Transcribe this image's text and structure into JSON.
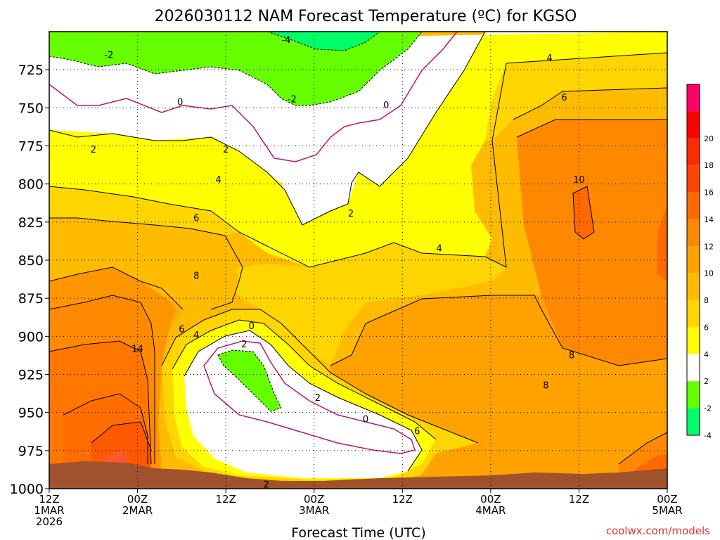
{
  "chart_data": {
    "type": "heatmap",
    "title": "2026030112 NAM Forecast Temperature (ºC) for KGSO",
    "xlabel": "Forecast Time (UTC)",
    "credit": "coolwx.com/models",
    "x_range_hours": [
      0,
      84
    ],
    "y_range_hpa": [
      1000,
      700
    ],
    "y_ticks": [
      725,
      750,
      775,
      800,
      825,
      850,
      875,
      900,
      925,
      950,
      975,
      1000
    ],
    "x_ticks": [
      {
        "hour": 0,
        "line1": "12Z",
        "line2": "1MAR",
        "line3": "2026"
      },
      {
        "hour": 12,
        "line1": "00Z",
        "line2": "2MAR",
        "line3": ""
      },
      {
        "hour": 24,
        "line1": "12Z",
        "line2": "",
        "line3": ""
      },
      {
        "hour": 36,
        "line1": "00Z",
        "line2": "3MAR",
        "line3": ""
      },
      {
        "hour": 48,
        "line1": "12Z",
        "line2": "",
        "line3": ""
      },
      {
        "hour": 60,
        "line1": "00Z",
        "line2": "4MAR",
        "line3": ""
      },
      {
        "hour": 72,
        "line1": "12Z",
        "line2": "",
        "line3": ""
      },
      {
        "hour": 84,
        "line1": "00Z",
        "line2": "5MAR",
        "line3": ""
      }
    ],
    "colorbar": [
      {
        "from": 20,
        "to": 22,
        "color": "#ff0066",
        "label": ""
      },
      {
        "from": 18,
        "to": 20,
        "color": "#ff0000",
        "label": "20"
      },
      {
        "from": 16,
        "to": 18,
        "color": "#ff2a00",
        "label": "18"
      },
      {
        "from": 14,
        "to": 16,
        "color": "#ff4400",
        "label": "16"
      },
      {
        "from": 12,
        "to": 14,
        "color": "#ff6a00",
        "label": "14"
      },
      {
        "from": 10,
        "to": 12,
        "color": "#ff8800",
        "label": "12"
      },
      {
        "from": 8,
        "to": 10,
        "color": "#ffa200",
        "label": "10"
      },
      {
        "from": 6,
        "to": 8,
        "color": "#ffbb00",
        "label": "8"
      },
      {
        "from": 4,
        "to": 6,
        "color": "#ffd500",
        "label": "6"
      },
      {
        "from": 2,
        "to": 4,
        "color": "#ffff00",
        "label": "4"
      },
      {
        "from": -2,
        "to": 2,
        "color": "#ffffff",
        "label": "2"
      },
      {
        "from": -4,
        "to": -2,
        "color": "#66ff00",
        "label": "-2"
      },
      {
        "from": -6,
        "to": -4,
        "color": "#00ff66",
        "label": "-4"
      }
    ],
    "contour_labels": [
      {
        "text": "-4",
        "hour": 32.2,
        "hpa": 705
      },
      {
        "text": "-2",
        "hour": 8.1,
        "hpa": 715
      },
      {
        "text": "-2",
        "hour": 33.0,
        "hpa": 744
      },
      {
        "text": "0",
        "hour": 17.8,
        "hpa": 746
      },
      {
        "text": "0",
        "hour": 45.8,
        "hpa": 748
      },
      {
        "text": "4",
        "hour": 68.0,
        "hpa": 717
      },
      {
        "text": "6",
        "hour": 70.0,
        "hpa": 743
      },
      {
        "text": "2",
        "hour": 6.0,
        "hpa": 777
      },
      {
        "text": "2",
        "hour": 24.0,
        "hpa": 777
      },
      {
        "text": "4",
        "hour": 23.0,
        "hpa": 797
      },
      {
        "text": "10",
        "hour": 72.0,
        "hpa": 797
      },
      {
        "text": "2",
        "hour": 41.0,
        "hpa": 819
      },
      {
        "text": "6",
        "hour": 20.0,
        "hpa": 822
      },
      {
        "text": "4",
        "hour": 53.0,
        "hpa": 842
      },
      {
        "text": "8",
        "hour": 20.0,
        "hpa": 860
      },
      {
        "text": "0",
        "hour": 27.5,
        "hpa": 893
      },
      {
        "text": "6",
        "hour": 18.0,
        "hpa": 895
      },
      {
        "text": "4",
        "hour": 20.0,
        "hpa": 899
      },
      {
        "text": "14",
        "hour": 12.0,
        "hpa": 908
      },
      {
        "text": "2",
        "hour": 26.5,
        "hpa": 905
      },
      {
        "text": "8",
        "hour": 71.0,
        "hpa": 912
      },
      {
        "text": "8",
        "hour": 67.5,
        "hpa": 932
      },
      {
        "text": "2",
        "hour": 36.5,
        "hpa": 940
      },
      {
        "text": "0",
        "hour": 43.0,
        "hpa": 954
      },
      {
        "text": "6",
        "hour": 50.0,
        "hpa": 962
      },
      {
        "text": "2",
        "hour": 29.5,
        "hpa": 997
      }
    ]
  }
}
